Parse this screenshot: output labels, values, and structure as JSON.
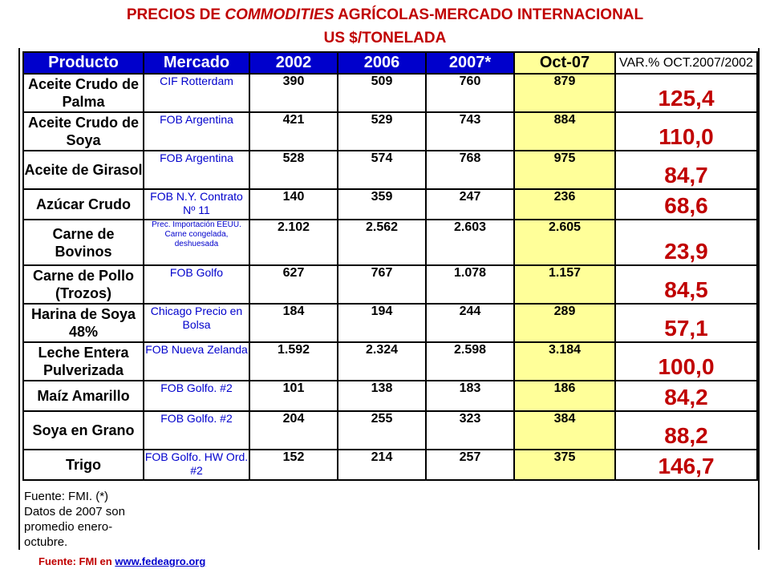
{
  "title_line1_a": "PRECIOS  DE ",
  "title_line1_em": "COMMODITIES",
  "title_line1_b": " AGRÍCOLAS-MERCADO INTERNACIONAL",
  "title_line2": "US $/TONELADA",
  "headers": [
    "Producto",
    "Mercado",
    "2002",
    "2006",
    "2007*",
    "Oct-07",
    "VAR.% OCT.2007/2002"
  ],
  "rows": [
    {
      "producto": "Aceite Crudo de Palma",
      "mercado": "CIF Rotterdam",
      "y2002": "390",
      "y2006": "509",
      "y2007": "760",
      "oct07": "879",
      "var": "125,4"
    },
    {
      "producto": "Aceite Crudo de Soya",
      "mercado": "FOB Argentina",
      "y2002": "421",
      "y2006": "529",
      "y2007": "743",
      "oct07": "884",
      "var": "110,0"
    },
    {
      "producto": "Aceite de Girasol",
      "mercado": "FOB Argentina",
      "y2002": "528",
      "y2006": "574",
      "y2007": "768",
      "oct07": "975",
      "var": "84,7"
    },
    {
      "producto": "Azúcar Crudo",
      "mercado": "FOB N.Y. Contrato Nº 11",
      "y2002": "140",
      "y2006": "359",
      "y2007": "247",
      "oct07": "236",
      "var": "68,6"
    },
    {
      "producto": "Carne de Bovinos",
      "mercado": "Prec. Importación EEUU. Carne congelada, deshuesada",
      "y2002": "2.102",
      "y2006": "2.562",
      "y2007": "2.603",
      "oct07": "2.605",
      "var": "23,9"
    },
    {
      "producto": "Carne de Pollo (Trozos)",
      "mercado": "FOB Golfo",
      "y2002": "627",
      "y2006": "767",
      "y2007": "1.078",
      "oct07": "1.157",
      "var": "84,5"
    },
    {
      "producto": "Harina de Soya 48%",
      "mercado": "Chicago Precio en Bolsa",
      "y2002": "184",
      "y2006": "194",
      "y2007": "244",
      "oct07": "289",
      "var": "57,1"
    },
    {
      "producto": "Leche Entera Pulverizada",
      "mercado": "FOB Nueva Zelanda",
      "y2002": "1.592",
      "y2006": "2.324",
      "y2007": "2.598",
      "oct07": "3.184",
      "var": "100,0"
    },
    {
      "producto": "Maíz Amarillo",
      "mercado": "FOB Golfo. #2",
      "y2002": "101",
      "y2006": "138",
      "y2007": "183",
      "oct07": "186",
      "var": "84,2"
    },
    {
      "producto": "Soya en Grano",
      "mercado": "FOB Golfo. #2",
      "y2002": "204",
      "y2006": "255",
      "y2007": "323",
      "oct07": "384",
      "var": "88,2"
    },
    {
      "producto": "Trigo",
      "mercado": "FOB Golfo. HW Ord. #2",
      "y2002": "152",
      "y2006": "214",
      "y2007": "257",
      "oct07": "375",
      "var": "146,7"
    }
  ],
  "note_lines": [
    "Fuente: FMI. (*)",
    "Datos de 2007 son",
    "promedio enero-",
    "octubre."
  ],
  "footer_source": "Fuente: FMI en ",
  "footer_link": "www.fedeagro.org"
}
